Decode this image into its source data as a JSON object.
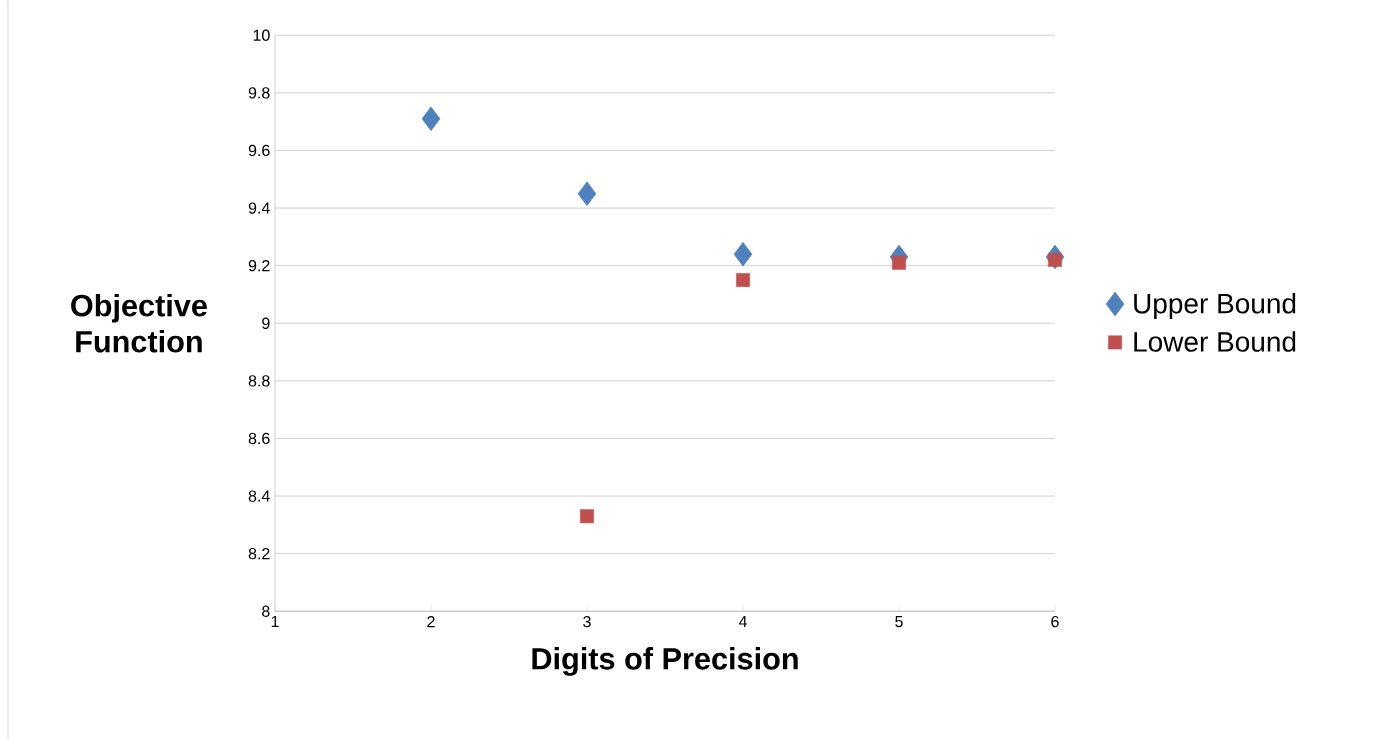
{
  "chart_data": {
    "type": "scatter",
    "xlabel": "Digits of Precision",
    "ylabel": "Objective Function",
    "x": [
      2,
      3,
      4,
      5,
      6
    ],
    "series": [
      {
        "name": "Upper Bound",
        "color": "#4f81bd",
        "marker": "diamond",
        "values": [
          9.71,
          9.45,
          9.24,
          9.23,
          9.23
        ]
      },
      {
        "name": "Lower Bound",
        "color": "#c0504d",
        "marker": "square",
        "values": [
          null,
          8.33,
          9.15,
          9.21,
          9.22
        ]
      }
    ],
    "xlim": [
      1,
      6
    ],
    "xticks": [
      1,
      2,
      3,
      4,
      5,
      6
    ],
    "ylim": [
      8,
      10
    ],
    "yticks": [
      8,
      8.2,
      8.4,
      8.6,
      8.8,
      9,
      9.2,
      9.4,
      9.6,
      9.8,
      10
    ],
    "grid": "y",
    "legend": "right"
  }
}
